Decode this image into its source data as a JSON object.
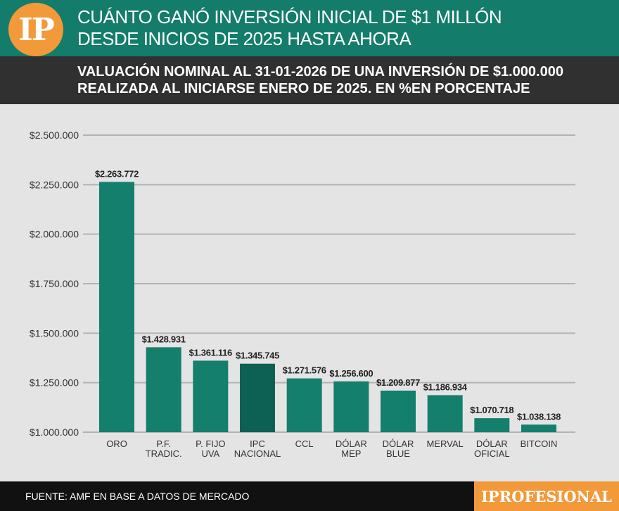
{
  "header": {
    "logo_text": "IP",
    "title_line1": "CUÁNTO GANÓ INVERSIÓN INICIAL DE $1 MILLÓN",
    "title_line2": "DESDE INICIOS DE 2025 HASTA AHORA"
  },
  "subheader": {
    "line1": "VALUACIÓN NOMINAL AL 31-01-2026 DE UNA INVERSIÓN DE $1.000.000",
    "line2": "REALIZADA AL INICIARSE ENERO DE 2025. EN %EN PORCENTAJE"
  },
  "footer": {
    "source": "FUENTE: AMF EN BASE A DATOS DE MERCADO",
    "brand": "IPROFESIONAL"
  },
  "colors": {
    "bar": "#147f6c",
    "bar_highlight": "#0d6054",
    "grid": "#b3b3b3",
    "header": "#137c6a",
    "accent": "#f29a3a"
  },
  "chart_data": {
    "type": "bar",
    "title": "VALUACIÓN NOMINAL AL 31-01-2026 DE UNA INVERSIÓN DE $1.000.000",
    "xlabel": "",
    "ylabel": "",
    "ylim": [
      1000000,
      2500000
    ],
    "yticks": [
      1000000,
      1250000,
      1500000,
      1750000,
      2000000,
      2250000,
      2500000
    ],
    "ytick_labels": [
      "$1.000.000",
      "$1.250.000",
      "$1.500.000",
      "$1.750.000",
      "$2.000.000",
      "$2.250.000",
      "$2.500.000"
    ],
    "grid": true,
    "highlight_index": 3,
    "categories": [
      [
        "ORO"
      ],
      [
        "P.F.",
        "TRADIC."
      ],
      [
        "P. FIJO",
        "UVA"
      ],
      [
        "IPC",
        "NACIONAL"
      ],
      [
        "CCL"
      ],
      [
        "DÓLAR",
        "MEP"
      ],
      [
        "DÓLAR",
        "BLUE"
      ],
      [
        "MERVAL"
      ],
      [
        "DÓLAR",
        "OFICIAL"
      ],
      [
        "BITCOIN"
      ]
    ],
    "values": [
      2263772,
      1428931,
      1361116,
      1345745,
      1271576,
      1256600,
      1209877,
      1186934,
      1070718,
      1038138
    ],
    "value_labels": [
      "$2.263.772",
      "$1.428.931",
      "$1.361.116",
      "$1.345.745",
      "$1.271.576",
      "$1.256.600",
      "$1.209.877",
      "$1.186.934",
      "$1.070.718",
      "$1.038.138"
    ]
  }
}
